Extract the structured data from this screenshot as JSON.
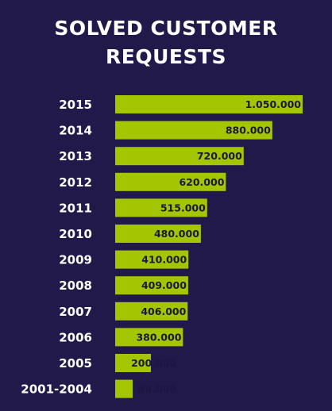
{
  "chart_data": {
    "type": "bar",
    "orientation": "horizontal",
    "title_lines": [
      "SOLVED CUSTOMER",
      "REQUESTS"
    ],
    "categories": [
      "2015",
      "2014",
      "2013",
      "2012",
      "2011",
      "2010",
      "2009",
      "2008",
      "2007",
      "2006",
      "2005",
      "2001-2004"
    ],
    "values": [
      1050000,
      880000,
      720000,
      620000,
      515000,
      480000,
      410000,
      409000,
      406000,
      380000,
      200000,
      98000
    ],
    "value_labels": [
      "1.050.000",
      "880.000",
      "720.000",
      "620.000",
      "515.000",
      "480.000",
      "410.000",
      "409.000",
      "406.000",
      "380.000",
      "200.000",
      "98.000"
    ],
    "xlabel": "",
    "ylabel": "",
    "grid": false,
    "legend": "none"
  },
  "colors": {
    "background": "#21194a",
    "bar": "#a3c600",
    "title": "#ffffff",
    "category_text": "#ffffff",
    "value_text": "#1c1640"
  }
}
